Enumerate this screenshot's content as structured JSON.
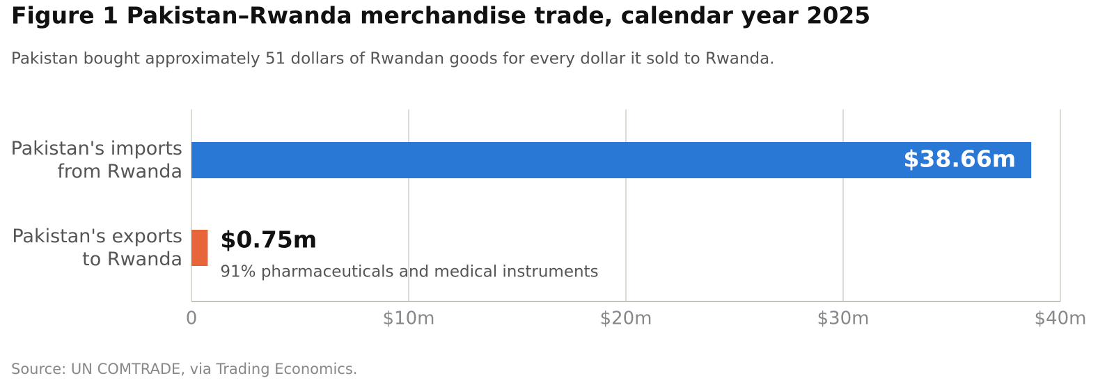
{
  "chart_data": {
    "type": "barh",
    "title": "Figure 1  Pakistan–Rwanda merchandise trade, calendar year 2025",
    "subtitle": "Pakistan bought approximately 51 dollars of Rwandan goods for every dollar it sold to Rwanda.",
    "categories": [
      "Pakistan's imports from Rwanda",
      "Pakistan's exports to Rwanda"
    ],
    "values": [
      38.66,
      0.75
    ],
    "value_labels": [
      "$38.66m",
      "$0.75m"
    ],
    "colors": [
      "#2a78d6",
      "#e8643a"
    ],
    "annotation": "91% pharmaceuticals and medical instruments",
    "xlim": [
      0,
      40
    ],
    "xticks": [
      0,
      {
        "value": 10,
        "label": "$10m"
      },
      {
        "value": 20,
        "label": "$20m"
      },
      {
        "value": 30,
        "label": "$30m"
      },
      {
        "value": 40,
        "label": "$40m"
      }
    ],
    "grid": true,
    "source": "Source: UN COMTRADE, via Trading Economics."
  }
}
